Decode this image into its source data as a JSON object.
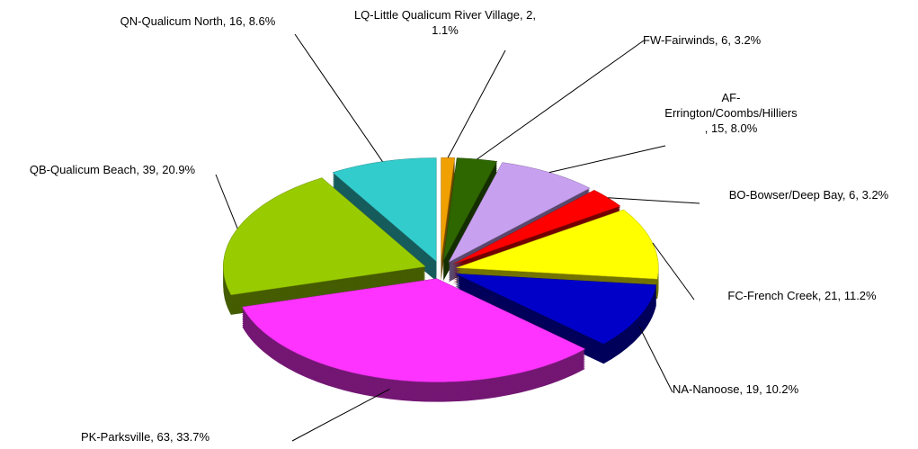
{
  "chart_data": {
    "type": "pie",
    "labels": [
      "LQ-Little Qualicum River Village, 2, 1.1%",
      "FW-Fairwinds, 6, 3.2%",
      "AF-Errington/Coombs/Hilliers, 15, 8.0%",
      "BO-Bowser/Deep Bay, 6, 3.2%",
      "FC-French Creek, 21, 11.2%",
      "NA-Nanoose, 19, 10.2%",
      "PK-Parksville, 63, 33.7%",
      "QB-Qualicum Beach, 39, 20.9%",
      "QN-Qualicum North, 16, 8.6%"
    ],
    "values": [
      2,
      6,
      15,
      6,
      21,
      19,
      63,
      39,
      16
    ],
    "colors": [
      "#f0a000",
      "#2e6600",
      "#c8a0f0",
      "#ff0000",
      "#ffff00",
      "#0000c8",
      "#ff33ff",
      "#99cc00",
      "#33cccc"
    ]
  }
}
